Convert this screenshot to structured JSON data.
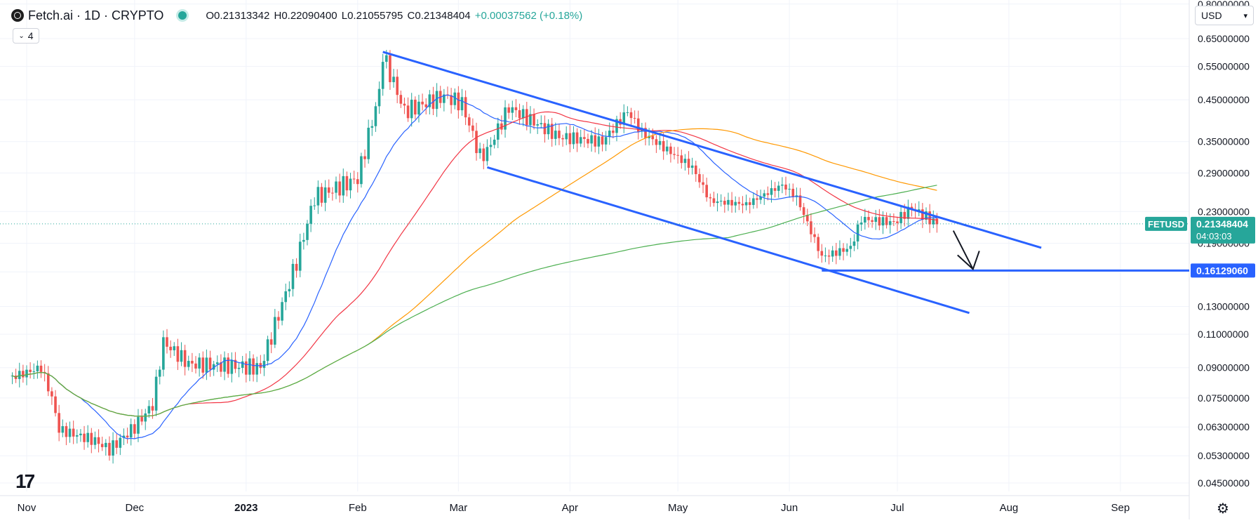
{
  "legend": {
    "symbol": "Fetch.ai · 1D · CRYPTO",
    "open": "O0.21313342",
    "high": "H0.22090400",
    "low": "L0.21055795",
    "close": "C0.21348404",
    "change": "+0.00037562 (+0.18%)"
  },
  "indicator_count": "4",
  "currency": "USD",
  "colors": {
    "up": "#26a69a",
    "down": "#ef5350",
    "trendline": "#2962ff",
    "ma_blue": "#2962ff",
    "ma_red": "#f23645",
    "ma_orange": "#ff9800",
    "ma_green": "#4caf50"
  },
  "chart_data": {
    "type": "candlestick",
    "x_axis_labels": [
      "Nov",
      "Dec",
      "2023",
      "Feb",
      "Mar",
      "Apr",
      "May",
      "Jun",
      "Jul",
      "Aug",
      "Sep"
    ],
    "y_axis_labels": [
      "0.80000000",
      "0.65000000",
      "0.55000000",
      "0.45000000",
      "0.35000000",
      "0.29000000",
      "0.23000000",
      "0.19000000",
      "0.16000000",
      "0.13000000",
      "0.11000000",
      "0.09000000",
      "0.07500000",
      "0.06300000",
      "0.05300000",
      "0.04500000"
    ],
    "scale": "log",
    "price_label": {
      "symbol": "FETUSD",
      "value": "0.21348404",
      "countdown": "04:03:03"
    },
    "level_label": {
      "value": "0.16129060"
    },
    "last_price": 0.21348404,
    "horizontal_level": 0.1612906,
    "candles_sampled": [
      [
        "2022-10-28",
        0.085
      ],
      [
        "2022-11-05",
        0.09
      ],
      [
        "2022-11-08",
        0.075
      ],
      [
        "2022-11-10",
        0.062
      ],
      [
        "2022-11-20",
        0.058
      ],
      [
        "2022-11-24",
        0.055
      ],
      [
        "2022-12-01",
        0.063
      ],
      [
        "2022-12-06",
        0.072
      ],
      [
        "2022-12-09",
        0.105
      ],
      [
        "2022-12-16",
        0.092
      ],
      [
        "2022-12-27",
        0.091
      ],
      [
        "2023-01-05",
        0.09
      ],
      [
        "2023-01-15",
        0.17
      ],
      [
        "2023-01-20",
        0.25
      ],
      [
        "2023-02-01",
        0.28
      ],
      [
        "2023-02-07",
        0.47
      ],
      [
        "2023-02-08",
        0.59
      ],
      [
        "2023-02-14",
        0.42
      ],
      [
        "2023-02-25",
        0.46
      ],
      [
        "2023-03-02",
        0.44
      ],
      [
        "2023-03-07",
        0.32
      ],
      [
        "2023-03-09",
        0.33
      ],
      [
        "2023-03-15",
        0.43
      ],
      [
        "2023-03-29",
        0.36
      ],
      [
        "2023-04-10",
        0.35
      ],
      [
        "2023-04-17",
        0.42
      ],
      [
        "2023-04-21",
        0.37
      ],
      [
        "2023-05-05",
        0.3
      ],
      [
        "2023-05-10",
        0.245
      ],
      [
        "2023-05-20",
        0.24
      ],
      [
        "2023-05-30",
        0.27
      ],
      [
        "2023-06-03",
        0.25
      ],
      [
        "2023-06-10",
        0.175
      ],
      [
        "2023-06-18",
        0.185
      ],
      [
        "2023-06-21",
        0.22
      ],
      [
        "2023-06-30",
        0.215
      ],
      [
        "2023-07-05",
        0.235
      ],
      [
        "2023-07-12",
        0.2135
      ]
    ]
  }
}
